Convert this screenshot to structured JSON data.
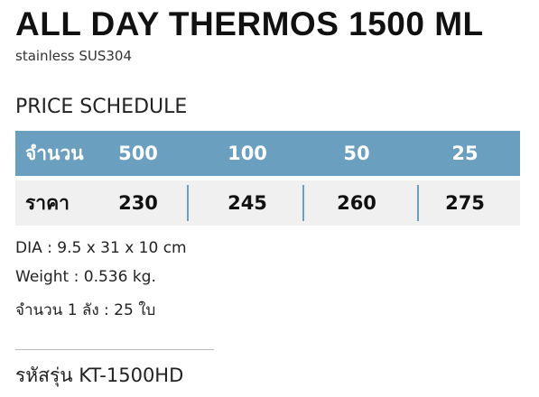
{
  "header": {
    "title": "ALL DAY THERMOS 1500 ML",
    "subtitle": "stainless SUS304"
  },
  "section": "PRICE SCHEDULE",
  "table": {
    "rows": [
      [
        "จำนวน",
        "500",
        "100",
        "50",
        "25"
      ],
      [
        "ราคา",
        "230",
        "245",
        "260",
        "275"
      ]
    ]
  },
  "specs": [
    "DIA : 9.5 x 31 x 10 cm",
    "Weight : 0.536 kg.",
    "จำนวน 1 ลัง : 25 ใบ"
  ],
  "code": "รหัสรุ่น KT-1500HD"
}
